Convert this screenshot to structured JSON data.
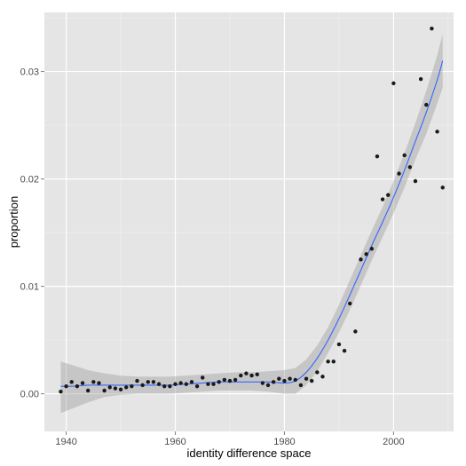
{
  "chart_data": {
    "type": "scatter",
    "title": "",
    "xlabel": "identity difference space",
    "ylabel": "proportion",
    "xlim": [
      1936,
      2011
    ],
    "ylim": [
      -0.0035,
      0.0355
    ],
    "grid": true,
    "legend": "none",
    "x_ticks": [
      1940,
      1960,
      1980,
      2000
    ],
    "x_tick_labels": [
      "1940",
      "1960",
      "1980",
      "2000"
    ],
    "y_ticks": [
      0.0,
      0.01,
      0.02,
      0.03
    ],
    "y_tick_labels": [
      "0.00",
      "0.01",
      "0.02",
      "0.03"
    ],
    "colors": {
      "panel": "#e5e5e5",
      "grid_major": "#ffffff",
      "grid_minor": "#f2f2f2",
      "points": "#1a1a1a",
      "smooth_line": "#3366ff",
      "confidence_band": "#999999"
    },
    "points": {
      "x": [
        1939,
        1940,
        1941,
        1942,
        1943,
        1944,
        1945,
        1946,
        1947,
        1948,
        1949,
        1950,
        1951,
        1952,
        1953,
        1954,
        1955,
        1956,
        1957,
        1958,
        1959,
        1960,
        1961,
        1962,
        1963,
        1964,
        1965,
        1966,
        1967,
        1968,
        1969,
        1970,
        1971,
        1972,
        1973,
        1974,
        1975,
        1976,
        1977,
        1978,
        1979,
        1980,
        1981,
        1982,
        1983,
        1984,
        1985,
        1986,
        1987,
        1988,
        1989,
        1990,
        1991,
        1992,
        1993,
        1994,
        1995,
        1996,
        1997,
        1998,
        1999,
        2000,
        2001,
        2002,
        2003,
        2004,
        2005,
        2006,
        2007,
        2008,
        2009
      ],
      "y": [
        0.0002,
        0.0007,
        0.0011,
        0.0007,
        0.001,
        0.0003,
        0.0011,
        0.001,
        0.0003,
        0.0006,
        0.0005,
        0.0004,
        0.0006,
        0.0007,
        0.0012,
        0.0008,
        0.0011,
        0.0011,
        0.0009,
        0.0007,
        0.0007,
        0.0009,
        0.001,
        0.0009,
        0.0011,
        0.0007,
        0.0015,
        0.0009,
        0.0009,
        0.0011,
        0.0013,
        0.0012,
        0.0013,
        0.0017,
        0.0019,
        0.0017,
        0.0018,
        0.001,
        0.0008,
        0.0011,
        0.0014,
        0.0012,
        0.0014,
        0.0013,
        0.0008,
        0.0014,
        0.0012,
        0.002,
        0.0016,
        0.003,
        0.003,
        0.0046,
        0.004,
        0.0084,
        0.0058,
        0.0125,
        0.013,
        0.0135,
        0.0221,
        0.0181,
        0.0185,
        0.0289,
        0.0205,
        0.0222,
        0.0211,
        0.0198,
        0.0293,
        0.0269,
        0.034,
        0.0244,
        0.0192
      ]
    },
    "smooth": {
      "x": [
        1939,
        1941,
        1944,
        1947,
        1950,
        1953,
        1956,
        1959,
        1962,
        1965,
        1968,
        1971,
        1974,
        1977,
        1980,
        1982,
        1984,
        1986,
        1988,
        1990,
        1992,
        1994,
        1996,
        1998,
        2000,
        2002,
        2004,
        2006,
        2008,
        2009
      ],
      "y": [
        0.0007,
        0.0007,
        0.0008,
        0.0008,
        0.0008,
        0.0008,
        0.0008,
        0.0008,
        0.0009,
        0.001,
        0.0011,
        0.0011,
        0.0011,
        0.0011,
        0.001,
        0.0012,
        0.002,
        0.0033,
        0.005,
        0.007,
        0.0092,
        0.0115,
        0.0138,
        0.016,
        0.0183,
        0.0208,
        0.0235,
        0.0262,
        0.0292,
        0.031
      ],
      "upper": [
        0.003,
        0.0027,
        0.0022,
        0.0019,
        0.0017,
        0.0016,
        0.0016,
        0.0016,
        0.0017,
        0.0018,
        0.0019,
        0.002,
        0.002,
        0.0021,
        0.0022,
        0.0024,
        0.0032,
        0.0045,
        0.0062,
        0.0083,
        0.0106,
        0.0129,
        0.0152,
        0.0174,
        0.0198,
        0.0224,
        0.0252,
        0.0282,
        0.0315,
        0.0335
      ],
      "lower": [
        -0.0018,
        -0.0014,
        -0.0008,
        -0.0003,
        -0.0001,
        0.0,
        0.0,
        0.0,
        0.0001,
        0.0002,
        0.0003,
        0.0003,
        0.0003,
        0.0002,
        0.0,
        0.0,
        0.0008,
        0.0021,
        0.0038,
        0.0057,
        0.0078,
        0.0101,
        0.0124,
        0.0146,
        0.0168,
        0.0192,
        0.0218,
        0.0242,
        0.027,
        0.0285
      ]
    }
  }
}
